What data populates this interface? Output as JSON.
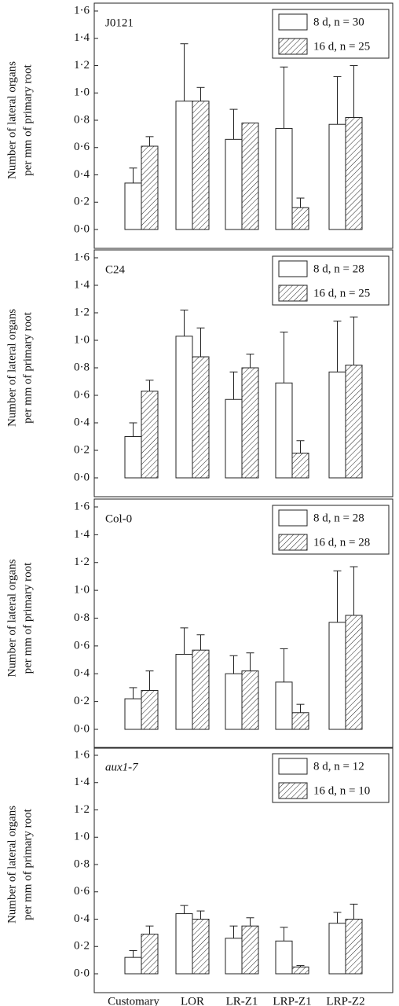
{
  "chart_data": [
    {
      "type": "bar",
      "label": "J0121",
      "ylabel": [
        "Number of lateral organs",
        "per mm of primary root"
      ],
      "categories": [
        null,
        null,
        null,
        null,
        null
      ],
      "series": [
        {
          "name": "8 d, n = 30",
          "color": "#ffffff",
          "hatch": false,
          "values": [
            0.34,
            0.94,
            0.66,
            0.74,
            0.77
          ],
          "errors": [
            0.11,
            0.42,
            0.22,
            0.45,
            0.35
          ]
        },
        {
          "name": "16 d, n = 25",
          "color": "#ffffff",
          "hatch": true,
          "values": [
            0.61,
            0.94,
            0.78,
            0.16,
            0.82
          ],
          "errors": [
            0.07,
            0.1,
            null,
            0.07,
            0.38
          ]
        }
      ],
      "ylim": [
        0,
        1.6
      ],
      "yticks": [
        {
          "value": 0,
          "label": "0·0"
        },
        {
          "value": 0.2,
          "label": "0·2"
        },
        {
          "value": 0.4,
          "label": "0·4"
        },
        {
          "value": 0.6,
          "label": "0·6"
        },
        {
          "value": 0.8,
          "label": "0·8"
        },
        {
          "value": 1.0,
          "label": "1·0"
        },
        {
          "value": 1.2,
          "label": "1·2"
        },
        {
          "value": 1.4,
          "label": "1·4"
        },
        {
          "value": 1.6,
          "label": "1·6"
        }
      ],
      "grid": false,
      "legend": "upper right"
    },
    {
      "type": "bar",
      "label": "C24",
      "ylabel": [
        "Number of lateral organs",
        "per mm of primary root"
      ],
      "categories": [
        null,
        null,
        null,
        null,
        null
      ],
      "series": [
        {
          "name": "8 d, n = 28",
          "color": "#ffffff",
          "hatch": false,
          "values": [
            0.3,
            1.03,
            0.57,
            0.69,
            0.77
          ],
          "errors": [
            0.1,
            0.19,
            0.2,
            0.37,
            0.37
          ]
        },
        {
          "name": "16 d, n = 25",
          "color": "#ffffff",
          "hatch": true,
          "values": [
            0.63,
            0.88,
            0.8,
            0.18,
            0.82
          ],
          "errors": [
            0.08,
            0.21,
            0.1,
            0.09,
            0.35
          ]
        }
      ],
      "ylim": [
        0,
        1.6
      ],
      "yticks": [
        {
          "value": 0,
          "label": "0·0"
        },
        {
          "value": 0.2,
          "label": "0·2"
        },
        {
          "value": 0.4,
          "label": "0·4"
        },
        {
          "value": 0.6,
          "label": "0·6"
        },
        {
          "value": 0.8,
          "label": "0·8"
        },
        {
          "value": 1.0,
          "label": "1·0"
        },
        {
          "value": 1.2,
          "label": "1·2"
        },
        {
          "value": 1.4,
          "label": "1·4"
        },
        {
          "value": 1.6,
          "label": "1·6"
        }
      ],
      "grid": false,
      "legend": "upper right"
    },
    {
      "type": "bar",
      "label": "Col-0",
      "ylabel": [
        "Number of lateral organs",
        "per mm of primary root"
      ],
      "categories": [
        null,
        null,
        null,
        null,
        null
      ],
      "series": [
        {
          "name": "8 d, n = 28",
          "color": "#ffffff",
          "hatch": false,
          "values": [
            0.22,
            0.54,
            0.4,
            0.34,
            0.77
          ],
          "errors": [
            0.08,
            0.19,
            0.13,
            0.24,
            0.37
          ]
        },
        {
          "name": "16 d, n = 28",
          "color": "#ffffff",
          "hatch": true,
          "values": [
            0.28,
            0.57,
            0.42,
            0.12,
            0.82
          ],
          "errors": [
            0.14,
            0.11,
            0.13,
            0.06,
            0.35
          ]
        }
      ],
      "ylim": [
        0,
        1.6
      ],
      "yticks": [
        {
          "value": 0,
          "label": "0·0"
        },
        {
          "value": 0.2,
          "label": "0·2"
        },
        {
          "value": 0.4,
          "label": "0·4"
        },
        {
          "value": 0.6,
          "label": "0·6"
        },
        {
          "value": 0.8,
          "label": "0·8"
        },
        {
          "value": 1.0,
          "label": "1·0"
        },
        {
          "value": 1.2,
          "label": "1·2"
        },
        {
          "value": 1.4,
          "label": "1·4"
        },
        {
          "value": 1.6,
          "label": "1·6"
        }
      ],
      "grid": false,
      "legend": "upper right"
    },
    {
      "type": "bar",
      "label": "aux1-7",
      "label_italic": true,
      "ylabel": [
        "Number of lateral organs",
        "per mm of primary root"
      ],
      "categories": [
        "Customary",
        "LOR",
        "LR-Z1",
        "LRP-Z1",
        "LRP-Z2"
      ],
      "series": [
        {
          "name": "8 d, n = 12",
          "color": "#ffffff",
          "hatch": false,
          "values": [
            0.12,
            0.44,
            0.26,
            0.24,
            0.37
          ],
          "errors": [
            0.05,
            0.06,
            0.09,
            0.1,
            0.08
          ]
        },
        {
          "name": "16 d, n = 10",
          "color": "#ffffff",
          "hatch": true,
          "values": [
            0.29,
            0.4,
            0.35,
            0.05,
            0.4
          ],
          "errors": [
            0.06,
            0.06,
            0.06,
            0.01,
            0.11
          ]
        }
      ],
      "ylim": [
        0,
        1.6
      ],
      "yticks": [
        {
          "value": 0,
          "label": "0·0"
        },
        {
          "value": 0.2,
          "label": "0·2"
        },
        {
          "value": 0.4,
          "label": "0·4"
        },
        {
          "value": 0.6,
          "label": "0·6"
        },
        {
          "value": 0.8,
          "label": "0·8"
        },
        {
          "value": 1.0,
          "label": "1·0"
        },
        {
          "value": 1.2,
          "label": "1·2"
        },
        {
          "value": 1.4,
          "label": "1·4"
        },
        {
          "value": 1.6,
          "label": "1·6"
        }
      ],
      "grid": false,
      "legend": "upper right"
    }
  ]
}
